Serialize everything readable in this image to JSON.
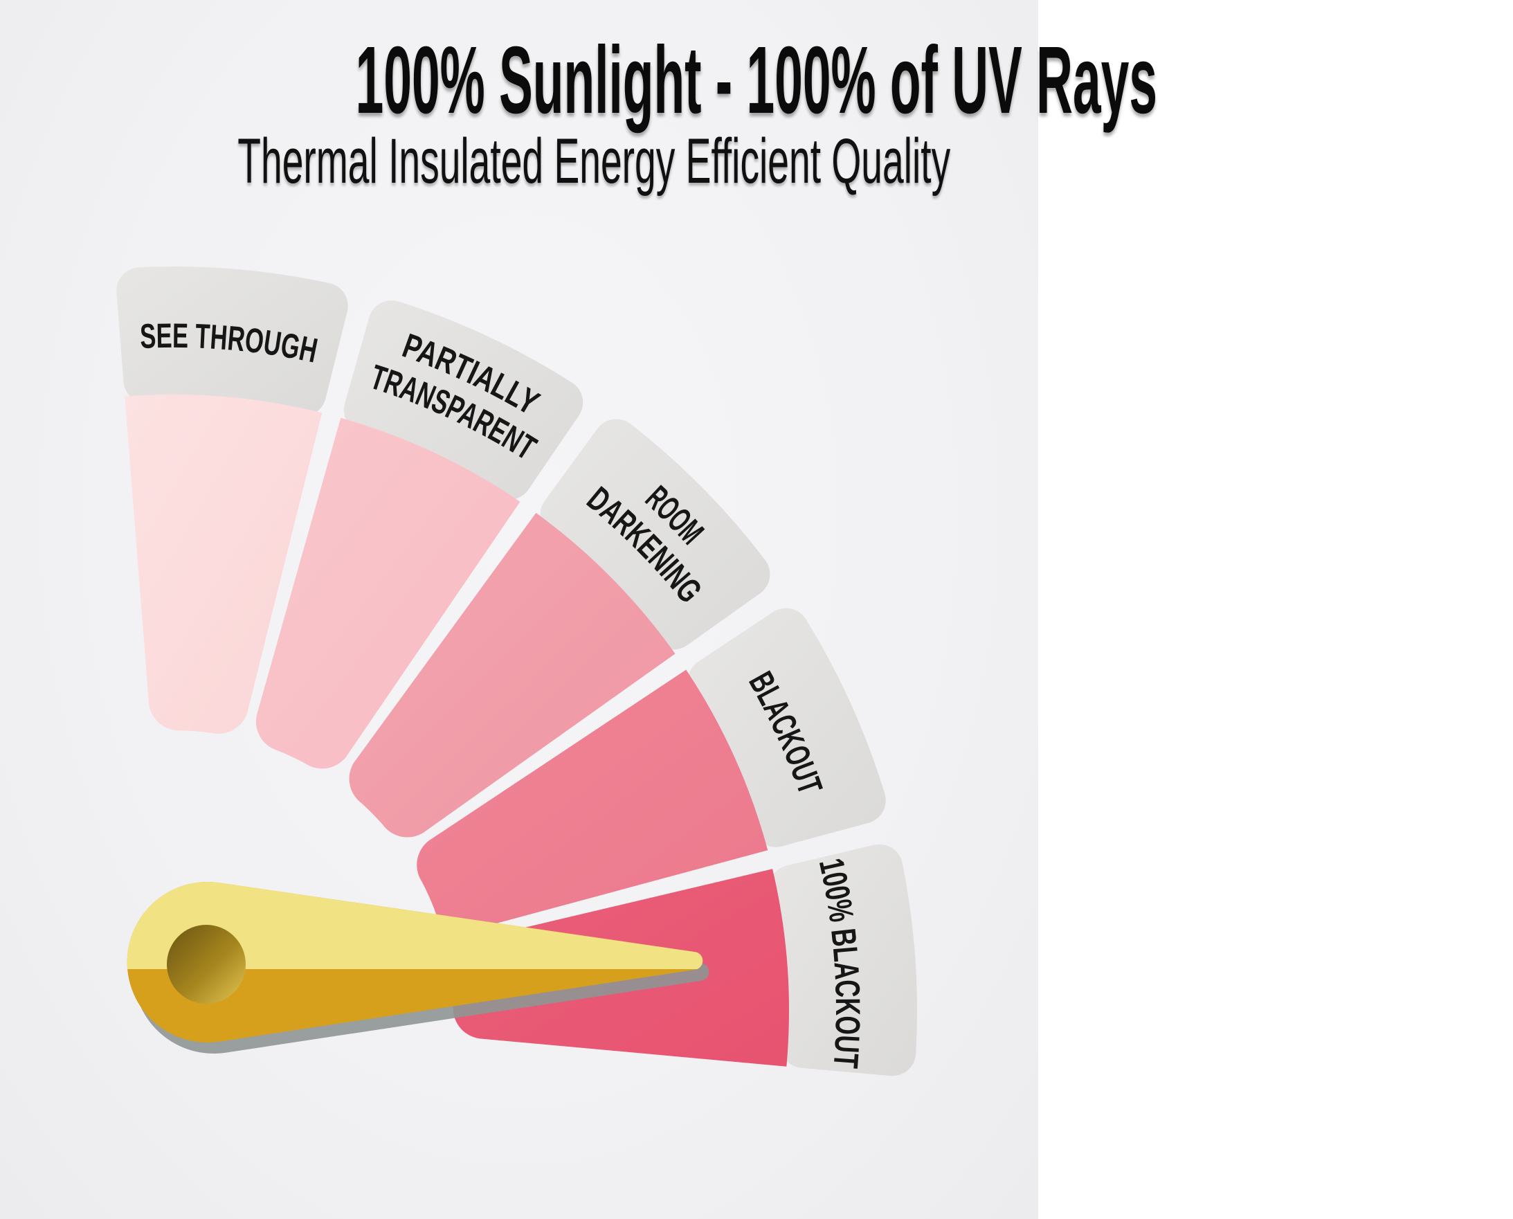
{
  "header": {
    "title": "100% Sunlight - 100% of UV Rays",
    "subtitle": "Thermal Insulated Energy Efficient Quality"
  },
  "chart_data": {
    "type": "gauge",
    "title": "100% Sunlight - 100% of UV Rays",
    "subtitle": "Thermal Insulated Energy Efficient Quality",
    "description": "Fan-style curtain opacity meter; five steps from transparent to fully opaque, gold needle points at the last step",
    "band_color": "#e7e6e4",
    "band_color2": "#dbdad8",
    "label_color": "#161616",
    "segments": [
      {
        "label": "SEE THROUGH",
        "lines": [
          "SEE THROUGH"
        ],
        "color": "#fce2e2",
        "color2": "#fbd5d6"
      },
      {
        "label": "PARTIALLY TRANSPARENT",
        "lines": [
          "PARTIALLY",
          "TRANSPARENT"
        ],
        "color": "#f9c7cc",
        "color2": "#f7bbc2"
      },
      {
        "label": "ROOM DARKENING",
        "lines": [
          "ROOM",
          "DARKENING"
        ],
        "color": "#f3a6b0",
        "color2": "#ef96a3"
      },
      {
        "label": "BLACKOUT",
        "lines": [
          "BLACKOUT"
        ],
        "color": "#ef8596",
        "color2": "#ec798d"
      },
      {
        "label": "100% BLACKOUT",
        "lines": [
          "100% BLACKOUT"
        ],
        "color": "#ea5f79",
        "color2": "#e75370"
      }
    ],
    "needle": {
      "points_to": "100% BLACKOUT",
      "top_color": "#f1e283",
      "bottom_color": "#d7a01c",
      "shadow_color": "#8f9595",
      "hub_gradient": [
        "#6a5512",
        "#a5851e",
        "#e3c654"
      ]
    }
  }
}
